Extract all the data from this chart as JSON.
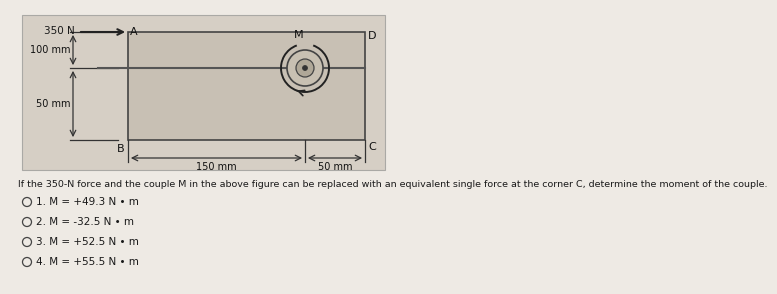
{
  "bg_color": "#eeeae4",
  "fig_bg": "#d6cfc6",
  "question_text": "If the 350-N force and the couple M in the above figure can be replaced with an equivalent single force at the corner C, determine the moment of the couple.",
  "options": [
    "1. M = +49.3 N • m",
    "2. M = -32.5 N • m",
    "3. M = +52.5 N • m",
    "4. M = +55.5 N • m"
  ],
  "force_label": "350 N",
  "dim_labels": [
    "100 mm",
    "50 mm",
    "150 mm",
    "50 mm"
  ],
  "corner_labels": [
    "A",
    "B",
    "C",
    "D"
  ],
  "moment_label": "M",
  "rect_outline": "#444444",
  "text_color": "#1a1a1a",
  "arrow_color": "#222222",
  "dim_color": "#333333"
}
